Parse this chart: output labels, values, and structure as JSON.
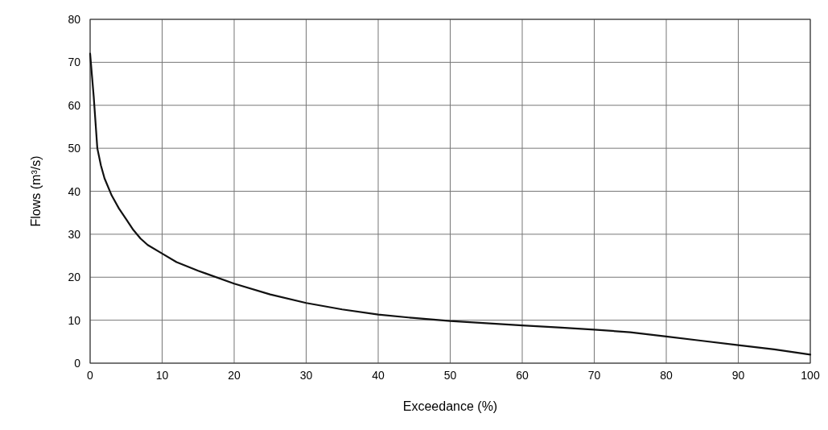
{
  "chart_data": {
    "type": "line",
    "xlabel": "Exceedance (%)",
    "ylabel": "Flows (m³/s)",
    "x": [
      0,
      0.5,
      1,
      1.5,
      2,
      3,
      4,
      5,
      6,
      7,
      8,
      10,
      12,
      15,
      20,
      25,
      30,
      35,
      40,
      45,
      50,
      55,
      60,
      65,
      70,
      75,
      80,
      85,
      90,
      95,
      100
    ],
    "series": [
      {
        "color": "#111111",
        "values": [
          72,
          62,
          50,
          46,
          43,
          39,
          36,
          33.5,
          31,
          29,
          27.5,
          25.5,
          23.5,
          21.5,
          18.5,
          16,
          14,
          12.5,
          11.3,
          10.5,
          9.8,
          9.3,
          8.8,
          8.3,
          7.8,
          7.2,
          6.2,
          5.2,
          4.2,
          3.2,
          2
        ]
      }
    ],
    "xlim": [
      0,
      100
    ],
    "xticks": [
      0,
      10,
      20,
      30,
      40,
      50,
      60,
      70,
      80,
      90,
      100
    ],
    "ylim": [
      0,
      80
    ],
    "yticks": [
      0,
      10,
      20,
      30,
      40,
      50,
      60,
      70,
      80
    ],
    "grid": true,
    "marker": "none",
    "line_style": "solid"
  }
}
